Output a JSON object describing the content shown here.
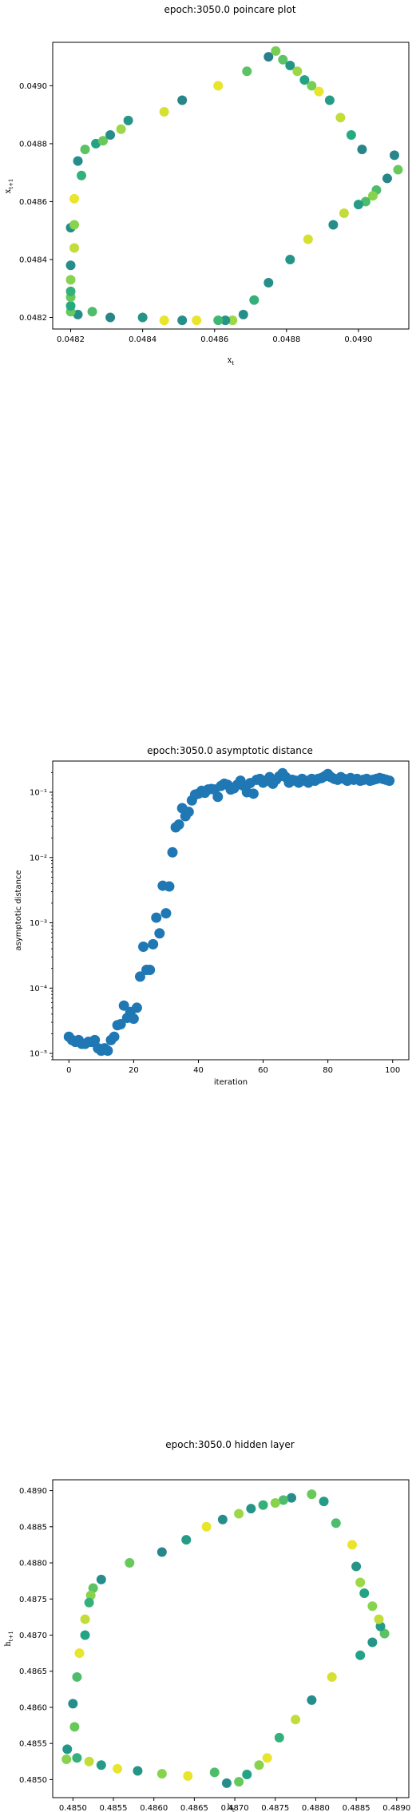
{
  "chart_data": [
    {
      "type": "scatter",
      "title": "epoch:3050.0 poincare plot",
      "xlabel": "x_t",
      "ylabel": "x_{t+1}",
      "xlim": [
        0.04815,
        0.04914
      ],
      "ylim": [
        0.04816,
        0.04915
      ],
      "xticks": [
        {
          "v": 0.0482,
          "label": "0.0482"
        },
        {
          "v": 0.0484,
          "label": "0.0484"
        },
        {
          "v": 0.0486,
          "label": "0.0486"
        },
        {
          "v": 0.0488,
          "label": "0.0488"
        },
        {
          "v": 0.049,
          "label": "0.0490"
        }
      ],
      "yticks": [
        {
          "v": 0.0482,
          "label": "0.0482"
        },
        {
          "v": 0.0484,
          "label": "0.0484"
        },
        {
          "v": 0.0486,
          "label": "0.0486"
        },
        {
          "v": 0.0488,
          "label": "0.0488"
        },
        {
          "v": 0.049,
          "label": "0.0490"
        }
      ],
      "colormap": [
        "#2a788e",
        "#22a884",
        "#7ad151",
        "#fde725"
      ],
      "points": [
        [
          0.04875,
          0.0491,
          0.05
        ],
        [
          0.04877,
          0.04912,
          0.65
        ],
        [
          0.04879,
          0.04909,
          0.55
        ],
        [
          0.04881,
          0.04907,
          0.2
        ],
        [
          0.04883,
          0.04905,
          0.75
        ],
        [
          0.04885,
          0.04902,
          0.3
        ],
        [
          0.04887,
          0.049,
          0.65
        ],
        [
          0.04889,
          0.04898,
          0.95
        ],
        [
          0.04892,
          0.04895,
          0.25
        ],
        [
          0.04895,
          0.04889,
          0.85
        ],
        [
          0.04898,
          0.04883,
          0.35
        ],
        [
          0.04901,
          0.04878,
          0.1
        ],
        [
          0.0491,
          0.04876,
          0.1
        ],
        [
          0.04911,
          0.04871,
          0.6
        ],
        [
          0.04908,
          0.04868,
          0.1
        ],
        [
          0.04905,
          0.04864,
          0.5
        ],
        [
          0.04904,
          0.04862,
          0.7
        ],
        [
          0.04902,
          0.0486,
          0.5
        ],
        [
          0.049,
          0.04859,
          0.25
        ],
        [
          0.04896,
          0.04856,
          0.85
        ],
        [
          0.04893,
          0.04852,
          0.15
        ],
        [
          0.04886,
          0.04847,
          0.9
        ],
        [
          0.04881,
          0.0484,
          0.2
        ],
        [
          0.04875,
          0.04832,
          0.15
        ],
        [
          0.04871,
          0.04826,
          0.4
        ],
        [
          0.04868,
          0.04821,
          0.15
        ],
        [
          0.04865,
          0.04819,
          0.75
        ],
        [
          0.04863,
          0.04819,
          0.2
        ],
        [
          0.04861,
          0.04819,
          0.45
        ],
        [
          0.04855,
          0.04819,
          0.95
        ],
        [
          0.04851,
          0.04819,
          0.15
        ],
        [
          0.04846,
          0.04819,
          0.95
        ],
        [
          0.0484,
          0.0482,
          0.2
        ],
        [
          0.04831,
          0.0482,
          0.1
        ],
        [
          0.04826,
          0.04822,
          0.5
        ],
        [
          0.04822,
          0.04821,
          0.15
        ],
        [
          0.0482,
          0.04822,
          0.6
        ],
        [
          0.0482,
          0.04824,
          0.35
        ],
        [
          0.0482,
          0.04827,
          0.6
        ],
        [
          0.0482,
          0.04829,
          0.4
        ],
        [
          0.0482,
          0.04833,
          0.7
        ],
        [
          0.0482,
          0.04838,
          0.15
        ],
        [
          0.04821,
          0.04844,
          0.85
        ],
        [
          0.0482,
          0.04851,
          0.15
        ],
        [
          0.04821,
          0.04852,
          0.7
        ],
        [
          0.04821,
          0.04861,
          0.95
        ],
        [
          0.04823,
          0.04869,
          0.4
        ],
        [
          0.04822,
          0.04874,
          0.15
        ],
        [
          0.04824,
          0.04878,
          0.55
        ],
        [
          0.04827,
          0.0488,
          0.3
        ],
        [
          0.04829,
          0.04881,
          0.6
        ],
        [
          0.04831,
          0.04883,
          0.15
        ],
        [
          0.04834,
          0.04885,
          0.75
        ],
        [
          0.04836,
          0.04888,
          0.2
        ],
        [
          0.04846,
          0.04891,
          0.9
        ],
        [
          0.04851,
          0.04895,
          0.1
        ],
        [
          0.04861,
          0.049,
          0.95
        ],
        [
          0.04869,
          0.04905,
          0.55
        ]
      ]
    },
    {
      "type": "scatter",
      "title": "epoch:3050.0 asymptotic distance",
      "xlabel": "iteration",
      "ylabel": "asymptotic distance",
      "xlim": [
        -5,
        105
      ],
      "ylim": [
        8e-06,
        0.3
      ],
      "yscale": "log",
      "xticks": [
        {
          "v": 0,
          "label": "0"
        },
        {
          "v": 20,
          "label": "20"
        },
        {
          "v": 40,
          "label": "40"
        },
        {
          "v": 60,
          "label": "60"
        },
        {
          "v": 80,
          "label": "80"
        },
        {
          "v": 100,
          "label": "100"
        }
      ],
      "yticks": [
        {
          "v": 1e-05,
          "label": "10⁻⁵"
        },
        {
          "v": 0.0001,
          "label": "10⁻⁴"
        },
        {
          "v": 0.001,
          "label": "10⁻³"
        },
        {
          "v": 0.01,
          "label": "10⁻²"
        },
        {
          "v": 0.1,
          "label": "10⁻¹"
        }
      ],
      "color": "#1f77b4",
      "x": [
        0,
        1,
        2,
        3,
        4,
        5,
        6,
        7,
        8,
        9,
        10,
        11,
        12,
        13,
        14,
        15,
        16,
        17,
        18,
        19,
        20,
        21,
        22,
        23,
        24,
        25,
        26,
        27,
        28,
        29,
        30,
        31,
        32,
        33,
        34,
        35,
        36,
        37,
        38,
        39,
        40,
        41,
        42,
        43,
        44,
        45,
        46,
        47,
        48,
        49,
        50,
        51,
        52,
        53,
        54,
        55,
        56,
        57,
        58,
        59,
        60,
        61,
        62,
        63,
        64,
        65,
        66,
        67,
        68,
        69,
        70,
        71,
        72,
        73,
        74,
        75,
        76,
        77,
        78,
        79,
        80,
        81,
        82,
        83,
        84,
        85,
        86,
        87,
        88,
        89,
        90,
        91,
        92,
        93,
        94,
        95,
        96,
        97,
        98,
        99
      ],
      "y": [
        1.8e-05,
        1.6e-05,
        1.5e-05,
        1.6e-05,
        1.4e-05,
        1.4e-05,
        1.5e-05,
        1.5e-05,
        1.6e-05,
        1.2e-05,
        1.1e-05,
        1.2e-05,
        1.1e-05,
        1.6e-05,
        1.8e-05,
        2.7e-05,
        2.8e-05,
        5.4e-05,
        3.5e-05,
        4.3e-05,
        3.4e-05,
        5e-05,
        0.00015,
        0.00043,
        0.00019,
        0.00019,
        0.00047,
        0.0012,
        0.00069,
        0.0037,
        0.0014,
        0.0036,
        0.012,
        0.029,
        0.032,
        0.057,
        0.043,
        0.05,
        0.075,
        0.092,
        0.095,
        0.105,
        0.098,
        0.11,
        0.112,
        0.11,
        0.085,
        0.125,
        0.135,
        0.13,
        0.11,
        0.115,
        0.13,
        0.15,
        0.125,
        0.1,
        0.138,
        0.095,
        0.155,
        0.16,
        0.14,
        0.15,
        0.17,
        0.135,
        0.155,
        0.175,
        0.195,
        0.17,
        0.14,
        0.155,
        0.15,
        0.14,
        0.16,
        0.15,
        0.14,
        0.16,
        0.15,
        0.16,
        0.165,
        0.175,
        0.19,
        0.17,
        0.16,
        0.155,
        0.17,
        0.16,
        0.15,
        0.165,
        0.155,
        0.16,
        0.15,
        0.155,
        0.16,
        0.15,
        0.155,
        0.16,
        0.165,
        0.16,
        0.155,
        0.15
      ]
    },
    {
      "type": "scatter",
      "title": "epoch:3050.0 hidden layer",
      "xlabel": "h_t",
      "ylabel": "h_{t+1}",
      "xlim": [
        0.48475,
        0.48915
      ],
      "ylim": [
        0.48475,
        0.48915
      ],
      "xticks": [
        {
          "v": 0.485,
          "label": "0.4850"
        },
        {
          "v": 0.4855,
          "label": "0.4855"
        },
        {
          "v": 0.486,
          "label": "0.4860"
        },
        {
          "v": 0.4865,
          "label": "0.4865"
        },
        {
          "v": 0.487,
          "label": "0.4870"
        },
        {
          "v": 0.4875,
          "label": "0.4875"
        },
        {
          "v": 0.488,
          "label": "0.4880"
        },
        {
          "v": 0.4885,
          "label": "0.4885"
        },
        {
          "v": 0.489,
          "label": "0.4890"
        }
      ],
      "yticks": [
        {
          "v": 0.485,
          "label": "0.4850"
        },
        {
          "v": 0.4855,
          "label": "0.4855"
        },
        {
          "v": 0.486,
          "label": "0.4860"
        },
        {
          "v": 0.4865,
          "label": "0.4865"
        },
        {
          "v": 0.487,
          "label": "0.4870"
        },
        {
          "v": 0.4875,
          "label": "0.4875"
        },
        {
          "v": 0.488,
          "label": "0.4880"
        },
        {
          "v": 0.4885,
          "label": "0.4885"
        },
        {
          "v": 0.489,
          "label": "0.4890"
        }
      ],
      "colormap": [
        "#2a788e",
        "#22a884",
        "#7ad151",
        "#fde725"
      ],
      "points": [
        [
          0.48795,
          0.48895,
          0.6
        ],
        [
          0.4877,
          0.4889,
          0.15
        ],
        [
          0.4876,
          0.48887,
          0.5
        ],
        [
          0.4875,
          0.48883,
          0.7
        ],
        [
          0.48735,
          0.4888,
          0.4
        ],
        [
          0.4872,
          0.48875,
          0.2
        ],
        [
          0.48705,
          0.48868,
          0.75
        ],
        [
          0.48685,
          0.4886,
          0.15
        ],
        [
          0.48665,
          0.4885,
          0.95
        ],
        [
          0.4864,
          0.48832,
          0.25
        ],
        [
          0.4861,
          0.48815,
          0.1
        ],
        [
          0.4857,
          0.488,
          0.6
        ],
        [
          0.48535,
          0.48777,
          0.15
        ],
        [
          0.48525,
          0.48765,
          0.55
        ],
        [
          0.48522,
          0.48755,
          0.7
        ],
        [
          0.4852,
          0.48745,
          0.4
        ],
        [
          0.48515,
          0.48722,
          0.85
        ],
        [
          0.48515,
          0.487,
          0.3
        ],
        [
          0.48508,
          0.48675,
          0.95
        ],
        [
          0.48505,
          0.48642,
          0.5
        ],
        [
          0.485,
          0.48605,
          0.15
        ],
        [
          0.48502,
          0.48573,
          0.6
        ],
        [
          0.48493,
          0.48542,
          0.2
        ],
        [
          0.48492,
          0.48528,
          0.7
        ],
        [
          0.48505,
          0.4853,
          0.4
        ],
        [
          0.4852,
          0.48525,
          0.85
        ],
        [
          0.48535,
          0.4852,
          0.25
        ],
        [
          0.48555,
          0.48515,
          0.95
        ],
        [
          0.4858,
          0.48512,
          0.2
        ],
        [
          0.4861,
          0.48508,
          0.7
        ],
        [
          0.48642,
          0.48505,
          0.95
        ],
        [
          0.48675,
          0.4851,
          0.5
        ],
        [
          0.4869,
          0.48495,
          0.15
        ],
        [
          0.48705,
          0.48497,
          0.6
        ],
        [
          0.48715,
          0.48507,
          0.3
        ],
        [
          0.4873,
          0.4852,
          0.7
        ],
        [
          0.4874,
          0.4853,
          0.95
        ],
        [
          0.48755,
          0.48558,
          0.4
        ],
        [
          0.48775,
          0.48583,
          0.85
        ],
        [
          0.48795,
          0.4861,
          0.15
        ],
        [
          0.4882,
          0.48642,
          0.9
        ],
        [
          0.48855,
          0.48672,
          0.3
        ],
        [
          0.4887,
          0.4869,
          0.2
        ],
        [
          0.48885,
          0.48702,
          0.55
        ],
        [
          0.4888,
          0.48712,
          0.25
        ],
        [
          0.48878,
          0.48722,
          0.85
        ],
        [
          0.4887,
          0.4874,
          0.7
        ],
        [
          0.4886,
          0.48758,
          0.3
        ],
        [
          0.48855,
          0.48773,
          0.75
        ],
        [
          0.4885,
          0.48795,
          0.2
        ],
        [
          0.48845,
          0.48825,
          0.95
        ],
        [
          0.48825,
          0.48855,
          0.5
        ],
        [
          0.4881,
          0.48885,
          0.25
        ]
      ]
    }
  ]
}
